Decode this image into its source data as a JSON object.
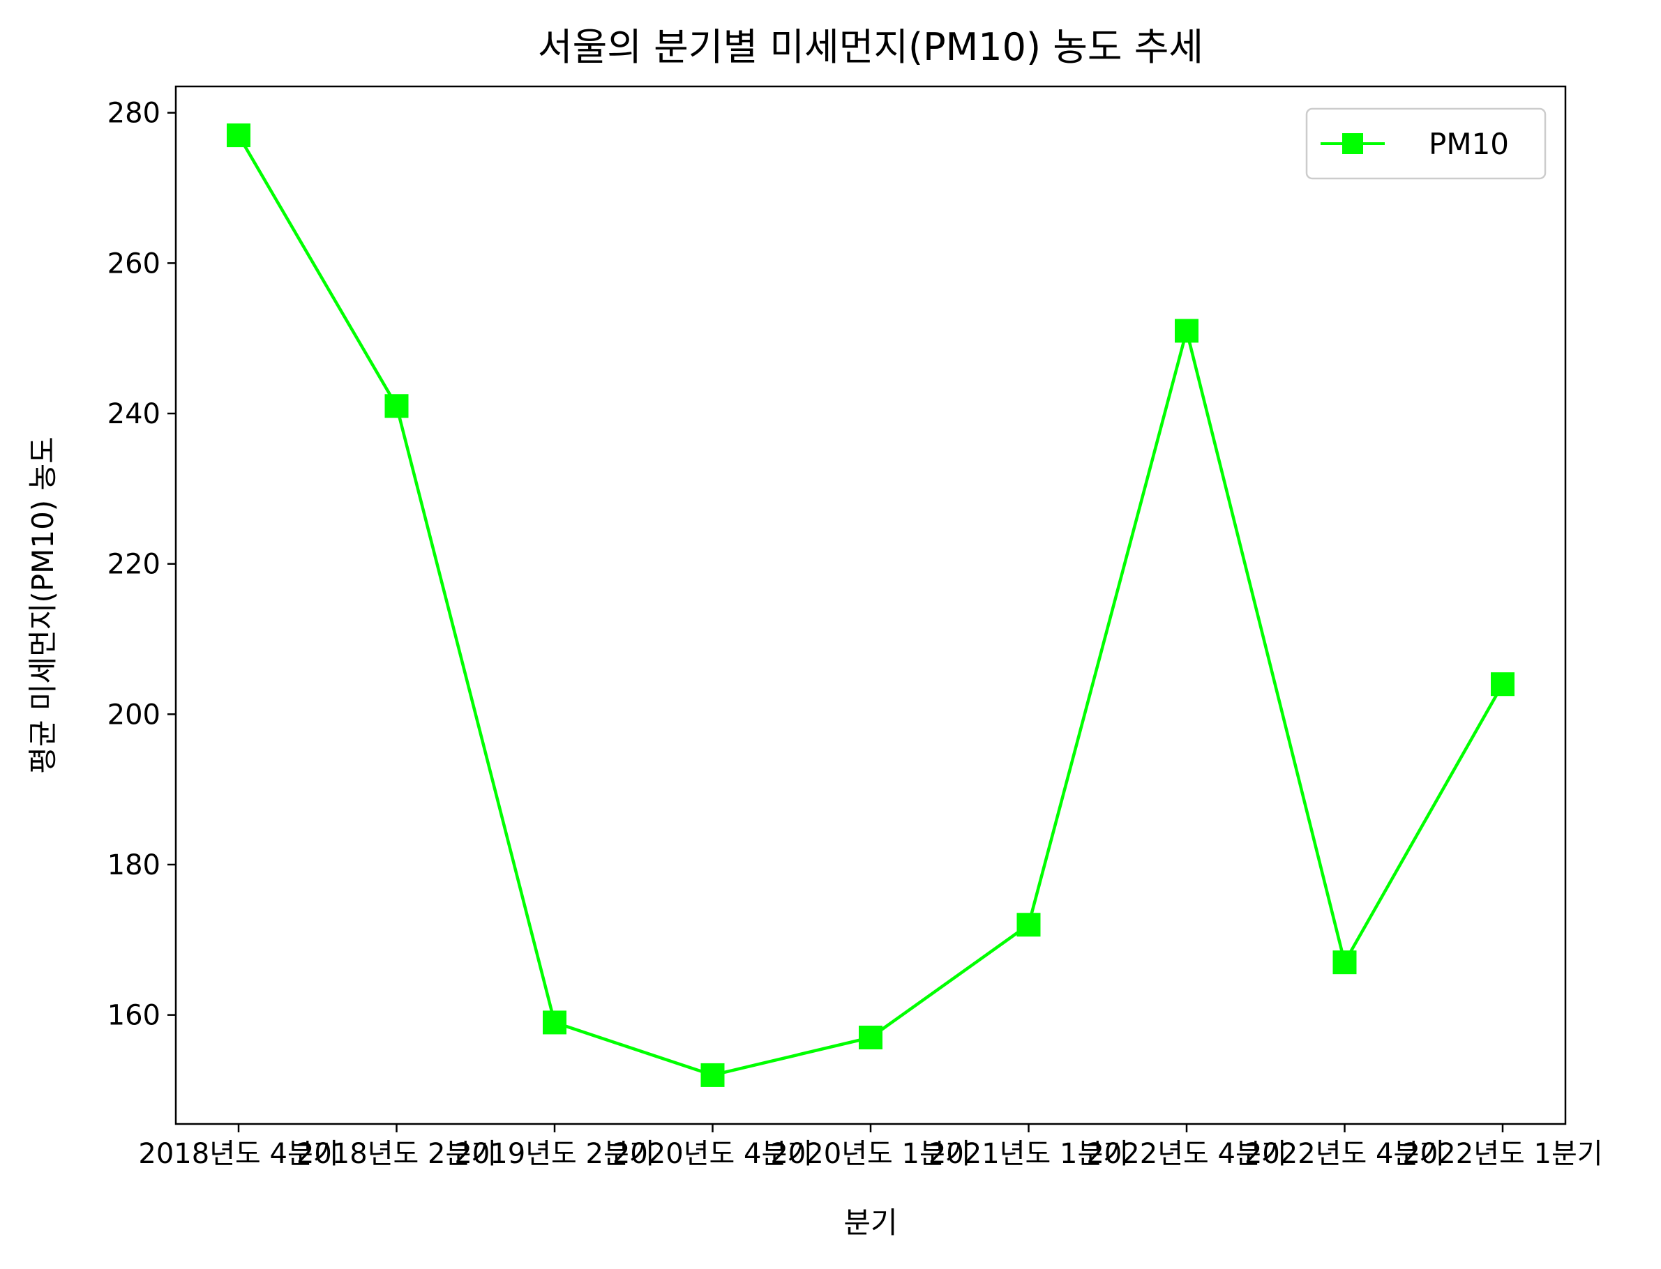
{
  "chart_data": {
    "type": "line",
    "title": "서울의 분기별 미세먼지(PM10) 농도 추세",
    "xlabel": "분기",
    "ylabel": "평균 미세먼지(PM10) 농도",
    "categories": [
      "2018년도 4분기",
      "2018년도 2분기",
      "2019년도 2분기",
      "2020년도 4분기",
      "2020년도 1분기",
      "2021년도 1분기",
      "2022년도 4분기",
      "2022년도 4분기",
      "2022년도 1분기"
    ],
    "series": [
      {
        "name": "PM10",
        "color": "#00ff00",
        "marker": "square",
        "values": [
          277,
          241,
          159,
          152,
          157,
          172,
          251,
          167,
          204
        ]
      }
    ],
    "ylim": [
      145.5,
      283.5
    ],
    "yticks": [
      160,
      180,
      200,
      220,
      240,
      260,
      280
    ],
    "grid": false,
    "legend": "top-right"
  }
}
